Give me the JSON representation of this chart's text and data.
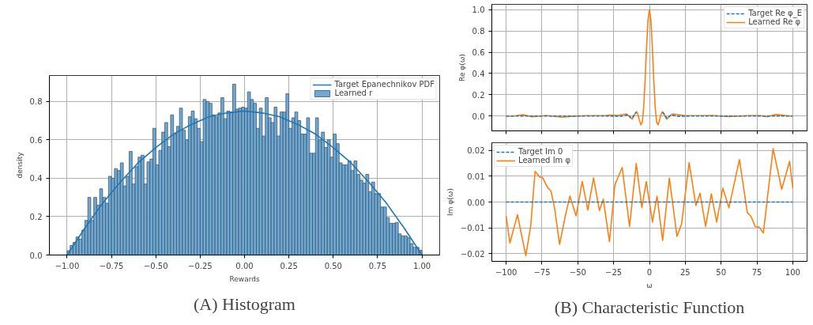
{
  "chart_data": [
    {
      "type": "histogram",
      "xlabel": "Rewards",
      "ylabel": "density",
      "xlim": [
        -1.1,
        1.1
      ],
      "ylim": [
        0,
        0.935
      ],
      "xticks": [
        {
          "value": -1,
          "label": "−1.00"
        },
        {
          "value": -0.75,
          "label": "−0.75"
        },
        {
          "value": -0.5,
          "label": "−0.50"
        },
        {
          "value": -0.25,
          "label": "−0.25"
        },
        {
          "value": 0,
          "label": "0.00"
        },
        {
          "value": 0.25,
          "label": "0.25"
        },
        {
          "value": 0.5,
          "label": "0.50"
        },
        {
          "value": 0.75,
          "label": "0.75"
        },
        {
          "value": 1,
          "label": "1.00"
        }
      ],
      "yticks": [
        {
          "value": 0,
          "label": "0.0"
        },
        {
          "value": 0.2,
          "label": "0.2"
        },
        {
          "value": 0.4,
          "label": "0.4"
        },
        {
          "value": 0.6,
          "label": "0.6"
        },
        {
          "value": 0.8,
          "label": "0.8"
        }
      ],
      "grid": true,
      "legend": "top right",
      "annotations": [
        "(A) Histogram"
      ],
      "bins": [
        -1,
        -0.9833,
        -0.9667,
        -0.95,
        -0.9333,
        -0.9167,
        -0.9,
        -0.8833,
        -0.8667,
        -0.85,
        -0.8333,
        -0.8167,
        -0.8,
        -0.7833,
        -0.7667,
        -0.75,
        -0.7333,
        -0.7167,
        -0.7,
        -0.6833,
        -0.6667,
        -0.65,
        -0.6333,
        -0.6167,
        -0.6,
        -0.5833,
        -0.5667,
        -0.55,
        -0.5333,
        -0.5167,
        -0.5,
        -0.4833,
        -0.4667,
        -0.45,
        -0.4333,
        -0.4167,
        -0.4,
        -0.3833,
        -0.3667,
        -0.35,
        -0.3333,
        -0.3167,
        -0.3,
        -0.2833,
        -0.2667,
        -0.25,
        -0.2333,
        -0.2167,
        -0.2,
        -0.1833,
        -0.1667,
        -0.15,
        -0.1333,
        -0.1167,
        -0.1,
        -0.0833,
        -0.0667,
        -0.05,
        -0.0333,
        -0.0167,
        0,
        0.0167,
        0.0333,
        0.05,
        0.0667,
        0.0833,
        0.1,
        0.1167,
        0.1333,
        0.15,
        0.1667,
        0.1833,
        0.2,
        0.2167,
        0.2333,
        0.25,
        0.2667,
        0.2833,
        0.3,
        0.3167,
        0.3333,
        0.35,
        0.3667,
        0.3833,
        0.4,
        0.4167,
        0.4333,
        0.45,
        0.4667,
        0.4833,
        0.5,
        0.5167,
        0.5333,
        0.55,
        0.5667,
        0.5833,
        0.6,
        0.6167,
        0.6333,
        0.65,
        0.6667,
        0.6833,
        0.7,
        0.7167,
        0.7333,
        0.75,
        0.7667,
        0.7833,
        0.8,
        0.8167,
        0.8333,
        0.85,
        0.8667,
        0.8833,
        0.9,
        0.9167,
        0.9333,
        0.95,
        0.9667,
        0.9833,
        1
      ],
      "series": [
        {
          "name": "Target Epanechnikov PDF",
          "type": "line",
          "color": "#1f77b4",
          "x": [
            -1,
            -0.9,
            -0.8,
            -0.7,
            -0.6,
            -0.5,
            -0.4,
            -0.3,
            -0.2,
            -0.1,
            0,
            0.1,
            0.2,
            0.3,
            0.4,
            0.5,
            0.6,
            0.7,
            0.8,
            0.9,
            1
          ],
          "values": [
            0,
            0.14,
            0.27,
            0.38,
            0.48,
            0.56,
            0.63,
            0.68,
            0.72,
            0.74,
            0.75,
            0.74,
            0.72,
            0.68,
            0.63,
            0.56,
            0.48,
            0.38,
            0.27,
            0.14,
            0
          ]
        },
        {
          "name": "Learned r",
          "type": "histogram",
          "color": "#6fa8d2",
          "values": [
            0.023,
            0.05,
            0.066,
            0.094,
            0.083,
            0.13,
            0.18,
            0.3,
            0.18,
            0.3,
            0.26,
            0.345,
            0.3,
            0.27,
            0.41,
            0.4,
            0.45,
            0.44,
            0.48,
            0.36,
            0.41,
            0.54,
            0.37,
            0.46,
            0.51,
            0.52,
            0.37,
            0.485,
            0.5,
            0.66,
            0.47,
            0.545,
            0.64,
            0.69,
            0.565,
            0.73,
            0.63,
            0.67,
            0.765,
            0.65,
            0.6,
            0.72,
            0.75,
            0.71,
            0.66,
            0.59,
            0.81,
            0.8,
            0.79,
            0.73,
            0.72,
            0.74,
            0.82,
            0.71,
            0.75,
            0.745,
            0.89,
            0.76,
            0.765,
            0.77,
            0.765,
            0.85,
            0.81,
            0.79,
            0.66,
            0.765,
            0.62,
            0.82,
            0.715,
            0.69,
            0.77,
            0.62,
            0.745,
            0.745,
            0.84,
            0.66,
            0.715,
            0.745,
            0.7,
            0.63,
            0.63,
            0.715,
            0.53,
            0.53,
            0.715,
            0.6,
            0.64,
            0.56,
            0.6,
            0.51,
            0.63,
            0.58,
            0.48,
            0.47,
            0.47,
            0.49,
            0.44,
            0.49,
            0.42,
            0.39,
            0.375,
            0.42,
            0.33,
            0.38,
            0.32,
            0.32,
            0.25,
            0.25,
            0.195,
            0.165,
            0.165,
            0.17,
            0.11,
            0.1,
            0.1,
            0.09,
            0.06,
            0.04,
            0.04,
            0.025
          ]
        }
      ]
    },
    {
      "type": "line",
      "ylabel": "Re φ(ω)",
      "xlim": [
        -110,
        110
      ],
      "ylim": [
        -0.14,
        1.05
      ],
      "tick_labels": "y",
      "xticks": [
        {
          "value": -100,
          "label": null
        },
        {
          "value": -75,
          "label": null
        },
        {
          "value": -50,
          "label": null
        },
        {
          "value": -25,
          "label": null
        },
        {
          "value": 0,
          "label": null
        },
        {
          "value": 25,
          "label": null
        },
        {
          "value": 50,
          "label": null
        },
        {
          "value": 75,
          "label": null
        },
        {
          "value": 100,
          "label": null
        }
      ],
      "yticks": [
        {
          "value": 0,
          "label": "0.0"
        },
        {
          "value": 0.2,
          "label": "0.2"
        },
        {
          "value": 0.4,
          "label": "0.4"
        },
        {
          "value": 0.6,
          "label": "0.6"
        },
        {
          "value": 0.8,
          "label": "0.8"
        },
        {
          "value": 1,
          "label": "1.0"
        }
      ],
      "grid": true,
      "legend": "top right",
      "series": [
        {
          "name": "Target Re φ_E",
          "color": "#1f77b4",
          "line_style": "dashed",
          "x": [
            -100,
            -30,
            -20,
            -15,
            -13,
            -12,
            -10,
            -9,
            -8,
            -7,
            -6,
            -5,
            -4,
            -3,
            -2,
            -1,
            0,
            1,
            2,
            3,
            4,
            5,
            6,
            7,
            8,
            9,
            10,
            12,
            13,
            15,
            20,
            30,
            100
          ],
          "values": [
            0,
            0,
            -0.003,
            0.011,
            -0.016,
            -0.019,
            0.024,
            0.035,
            null,
            null,
            null,
            null,
            null,
            null,
            null,
            null,
            null,
            null,
            null,
            null,
            null,
            null,
            null,
            null,
            null,
            0.035,
            0.024,
            -0.019,
            -0.016,
            0.011,
            -0.003,
            0,
            0
          ]
        },
        {
          "name": "Learned Re φ",
          "color": "#ff7f0e",
          "line_style": "solid",
          "x": [
            -100,
            -95,
            -88,
            -82,
            -72,
            -61,
            -56,
            -45,
            -31,
            -28,
            -22,
            -16,
            -12,
            -10,
            -9,
            -8,
            -7,
            -6,
            -5,
            -4,
            -3,
            -2,
            -1,
            0,
            1,
            2,
            3,
            4,
            5,
            6,
            7,
            8,
            9,
            10,
            12,
            16,
            24,
            37,
            44,
            55,
            68,
            77,
            82,
            88,
            96,
            100
          ],
          "values": [
            0,
            0,
            0.013,
            -0.008,
            0.005,
            -0.012,
            -0.005,
            0.003,
            0.003,
            0.008,
            0.005,
            0.02,
            -0.03,
            0.02,
            0.04,
            0.013,
            -0.04,
            -0.084,
            -0.057,
            0.087,
            0.346,
            0.653,
            0.904,
            1,
            0.904,
            0.653,
            0.346,
            0.087,
            -0.057,
            -0.084,
            -0.04,
            0.013,
            0.04,
            0.02,
            -0.03,
            0.02,
            0.005,
            0.003,
            0.005,
            -0.005,
            0.003,
            0.005,
            -0.008,
            0.015,
            0.002,
            0
          ]
        }
      ]
    },
    {
      "type": "line",
      "xlabel": "ω",
      "ylabel": "Im φ(ω)",
      "xlim": [
        -110,
        110
      ],
      "ylim": [
        -0.023,
        0.023
      ],
      "xticks": [
        {
          "value": -100,
          "label": "−100"
        },
        {
          "value": -75,
          "label": "−75"
        },
        {
          "value": -50,
          "label": "−50"
        },
        {
          "value": -25,
          "label": "−25"
        },
        {
          "value": 0,
          "label": "0"
        },
        {
          "value": 25,
          "label": "25"
        },
        {
          "value": 50,
          "label": "50"
        },
        {
          "value": 75,
          "label": "75"
        },
        {
          "value": 100,
          "label": "100"
        }
      ],
      "yticks": [
        {
          "value": -0.02,
          "label": "−0.02"
        },
        {
          "value": -0.01,
          "label": "−0.01"
        },
        {
          "value": 0,
          "label": "0.00"
        },
        {
          "value": 0.01,
          "label": "0.01"
        },
        {
          "value": 0.02,
          "label": "0.02"
        }
      ],
      "grid": true,
      "legend": "top left",
      "annotations": [
        "(B) Characteristic Function"
      ],
      "series": [
        {
          "name": "Target Im 0",
          "color": "#1f77b4",
          "line_style": "dashed",
          "x": [
            -100,
            100
          ],
          "values": [
            0,
            0
          ]
        },
        {
          "name": "Learned Im φ",
          "color": "#ff7f0e",
          "line_style": "solid",
          "x": [
            -100,
            -97.4,
            -92.1,
            -86.3,
            -82.9,
            -79.8,
            -76.4,
            -74.7,
            -71.2,
            -68.7,
            -66.1,
            -62.7,
            -58.4,
            -55.5,
            -51.2,
            -46.9,
            -43,
            -39,
            -34.9,
            -32.2,
            -27.9,
            -24.1,
            -19,
            -13.9,
            -9.2,
            -5.3,
            -2.2,
            2.1,
            5.3,
            9.2,
            13.9,
            19.2,
            22.4,
            27.7,
            32.4,
            35.3,
            39.2,
            43.2,
            46.9,
            51.2,
            55.5,
            62.8,
            68.3,
            70.9,
            73.8,
            76.5,
            79.5,
            86.3,
            92.3,
            97.8,
            100
          ],
          "values": [
            -0.0054,
            -0.0159,
            -0.0049,
            -0.0208,
            -0.0095,
            0.0119,
            0.0096,
            0.0096,
            0.0057,
            0.0042,
            -0.0027,
            -0.0164,
            -0.0046,
            0.0023,
            -0.0054,
            0.008,
            -0.0031,
            0.0094,
            -0.0033,
            0.0011,
            -0.0154,
            0.0067,
            0.0134,
            -0.0095,
            0.0149,
            -0.0022,
            0.0079,
            -0.0078,
            0.0023,
            -0.0149,
            0.0093,
            -0.0133,
            -0.0086,
            0.0153,
            -0.0014,
            0.0034,
            -0.0095,
            0.0032,
            -0.0078,
            0.0054,
            -0.0022,
            0.0165,
            -0.0041,
            -0.0056,
            -0.0095,
            -0.0097,
            -0.012,
            0.0207,
            0.0049,
            0.0158,
            0.0054
          ]
        }
      ]
    }
  ]
}
